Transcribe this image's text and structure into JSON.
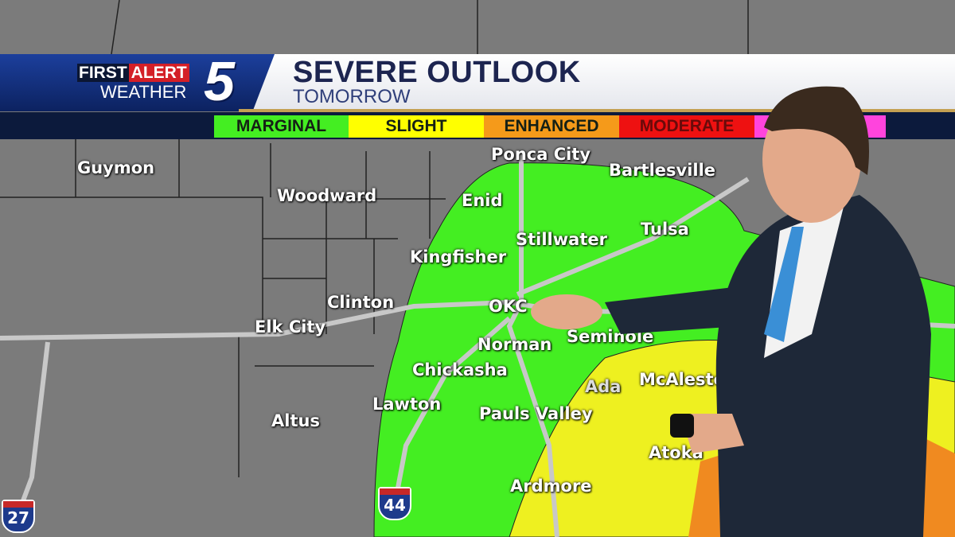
{
  "header": {
    "logo": {
      "first": "FIRST",
      "alert": "ALERT",
      "weather": "WEATHER",
      "channel": "5"
    },
    "title": "SEVERE OUTLOOK",
    "subtitle": "TOMORROW"
  },
  "legend": [
    {
      "label": "MARGINAL",
      "color": "#44ee22"
    },
    {
      "label": "SLIGHT",
      "color": "#ffff00"
    },
    {
      "label": "ENHANCED",
      "color": "#f59a1a"
    },
    {
      "label": "MODERATE",
      "color": "#ee1111"
    },
    {
      "label": "",
      "color": "#ff44dd"
    }
  ],
  "cities": [
    "Guymon",
    "Woodward",
    "Enid",
    "Ponca City",
    "Bartlesville",
    "Tulsa",
    "Stillwater",
    "Kingfisher",
    "Clinton",
    "Elk City",
    "OKC",
    "Seminole",
    "Norman",
    "Chickasha",
    "Ada",
    "McAlester",
    "Lawton",
    "Pauls Valley",
    "Altus",
    "Atoka",
    "Ardmore"
  ],
  "interstates": [
    "27",
    "44"
  ],
  "colors": {
    "map": "#7d7d7d",
    "marginal": "#44ee22",
    "slight": "#eef020",
    "enhanced": "#f08a20"
  }
}
